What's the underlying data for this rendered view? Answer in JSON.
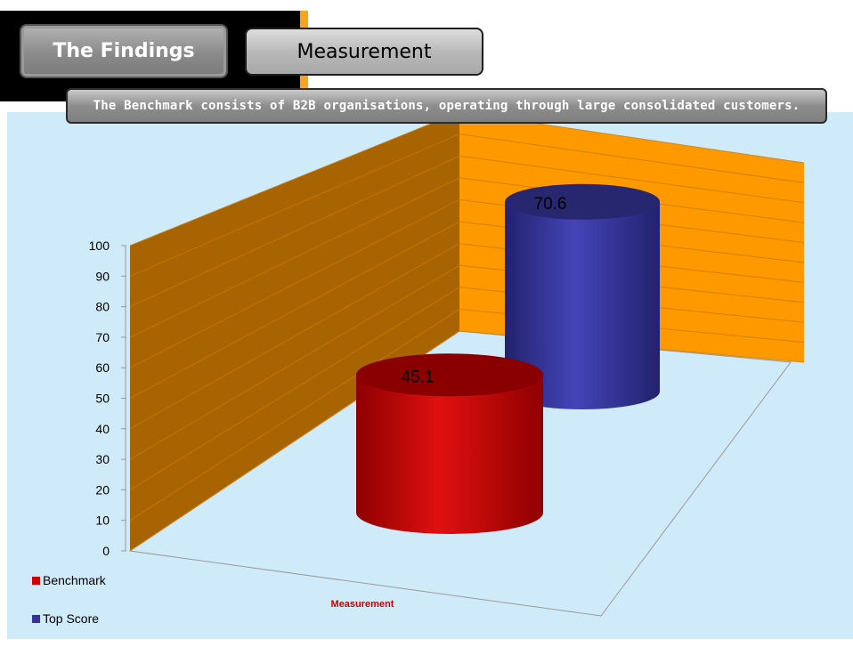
{
  "header": {
    "tabs": [
      {
        "label": "The Findings"
      },
      {
        "label": "Measurement"
      }
    ],
    "banner_text": "The Benchmark consists of B2B organisations, operating through large consolidated customers."
  },
  "colors": {
    "benchmark": "#cc0000",
    "top_score": "#333399",
    "back_wall": "#ff9900",
    "side_wall": "#a86400",
    "background": "#cfeaf9"
  },
  "chart_data": {
    "type": "bar",
    "style": "3d-cylinder",
    "categories": [
      "Measurement"
    ],
    "xlabel": "Measurement",
    "ylabel": "",
    "ylim": [
      0,
      100
    ],
    "yticks": [
      0,
      10,
      20,
      30,
      40,
      50,
      60,
      70,
      80,
      90,
      100
    ],
    "grid": true,
    "legend": "bottom-left",
    "series": [
      {
        "name": "Benchmark",
        "values": [
          45.1
        ],
        "color": "#cc0000"
      },
      {
        "name": "Top Score",
        "values": [
          70.6
        ],
        "color": "#333399"
      }
    ],
    "data_labels": [
      "45.1",
      "70.6"
    ]
  }
}
